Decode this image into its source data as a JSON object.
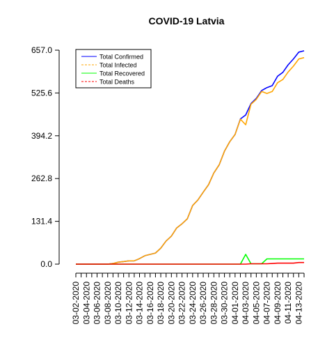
{
  "chart_data": {
    "type": "line",
    "title": "COVID-19 Latvia",
    "xlabel": "",
    "ylabel": "",
    "ylim": [
      0,
      657.0
    ],
    "yticks": [
      "0.0",
      "131.4",
      "262.8",
      "394.2",
      "525.6",
      "657.0"
    ],
    "grid": false,
    "legend_position": "top-left",
    "x": [
      "03-02-2020",
      "03-03-2020",
      "03-04-2020",
      "03-05-2020",
      "03-06-2020",
      "03-07-2020",
      "03-08-2020",
      "03-09-2020",
      "03-10-2020",
      "03-11-2020",
      "03-12-2020",
      "03-13-2020",
      "03-14-2020",
      "03-15-2020",
      "03-16-2020",
      "03-17-2020",
      "03-18-2020",
      "03-19-2020",
      "03-20-2020",
      "03-21-2020",
      "03-22-2020",
      "03-23-2020",
      "03-24-2020",
      "03-25-2020",
      "03-26-2020",
      "03-27-2020",
      "03-28-2020",
      "03-29-2020",
      "03-30-2020",
      "03-31-2020",
      "04-01-2020",
      "04-02-2020",
      "04-03-2020",
      "04-04-2020",
      "04-05-2020",
      "04-06-2020",
      "04-07-2020",
      "04-08-2020",
      "04-09-2020",
      "04-10-2020",
      "04-11-2020",
      "04-12-2020",
      "04-13-2020",
      "04-14-2020"
    ],
    "x_tick_labels": [
      "03-02-2020",
      "03-04-2020",
      "03-06-2020",
      "03-08-2020",
      "03-10-2020",
      "03-12-2020",
      "03-14-2020",
      "03-16-2020",
      "03-18-2020",
      "03-20-2020",
      "03-22-2020",
      "03-24-2020",
      "03-26-2020",
      "03-28-2020",
      "03-30-2020",
      "04-01-2020",
      "04-03-2020",
      "04-05-2020",
      "04-07-2020",
      "04-09-2020",
      "04-11-2020",
      "04-13-2020"
    ],
    "series": [
      {
        "name": "Total Confirmed",
        "color": "#0000ff",
        "dash": "solid",
        "values": [
          0,
          0,
          0,
          0,
          0,
          0,
          0,
          2,
          6,
          8,
          10,
          10,
          17,
          26,
          30,
          34,
          49,
          71,
          86,
          111,
          124,
          139,
          180,
          197,
          221,
          244,
          280,
          305,
          347,
          376,
          398,
          446,
          458,
          493,
          509,
          533,
          542,
          548,
          577,
          589,
          612,
          630,
          651,
          655
        ]
      },
      {
        "name": "Total Infected",
        "color": "#ffa500",
        "dash": "dashed",
        "values": [
          0,
          0,
          0,
          0,
          0,
          0,
          0,
          2,
          6,
          8,
          10,
          10,
          17,
          26,
          30,
          34,
          49,
          71,
          86,
          111,
          124,
          139,
          180,
          197,
          221,
          244,
          280,
          305,
          347,
          376,
          398,
          445,
          428,
          491,
          506,
          530,
          524,
          530,
          557,
          567,
          590,
          608,
          630,
          634
        ]
      },
      {
        "name": "Total Recovered",
        "color": "#00ff00",
        "dash": "solid",
        "values": [
          0,
          0,
          0,
          0,
          0,
          0,
          0,
          0,
          0,
          0,
          0,
          0,
          0,
          0,
          0,
          0,
          0,
          0,
          0,
          0,
          0,
          0,
          0,
          0,
          0,
          0,
          0,
          0,
          0,
          0,
          0,
          0,
          30,
          1,
          1,
          1,
          16,
          16,
          16,
          16,
          16,
          16,
          16,
          16
        ]
      },
      {
        "name": "Total Deaths",
        "color": "#ff0000",
        "dash": "dashed",
        "values": [
          0,
          0,
          0,
          0,
          0,
          0,
          0,
          0,
          0,
          0,
          0,
          0,
          0,
          0,
          0,
          0,
          0,
          0,
          0,
          0,
          0,
          0,
          0,
          0,
          0,
          0,
          0,
          0,
          0,
          0,
          0,
          0,
          0,
          1,
          1,
          1,
          1,
          2,
          3,
          3,
          3,
          3,
          5,
          5
        ]
      }
    ]
  }
}
